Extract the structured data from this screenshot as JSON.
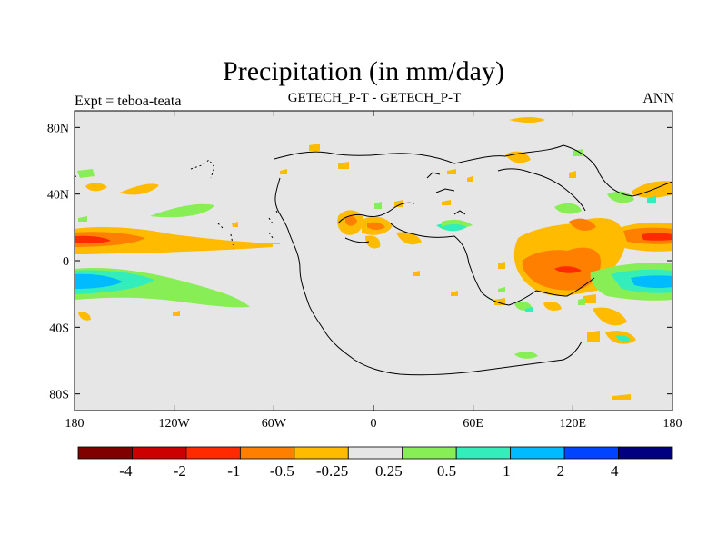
{
  "title": "Precipitation (in mm/day)",
  "left_label": "Expt = teboa-teata",
  "center_label": "GETECH_P-T - GETECH_P-T",
  "right_label": "ANN",
  "lat_ticks": [
    {
      "value": 80,
      "label": "80N"
    },
    {
      "value": 40,
      "label": "40N"
    },
    {
      "value": 0,
      "label": "0"
    },
    {
      "value": -40,
      "label": "40S"
    },
    {
      "value": -80,
      "label": "80S"
    }
  ],
  "lon_ticks": [
    {
      "value": -180,
      "label": "180"
    },
    {
      "value": -120,
      "label": "120W"
    },
    {
      "value": -60,
      "label": "60W"
    },
    {
      "value": 0,
      "label": "0"
    },
    {
      "value": 60,
      "label": "60E"
    },
    {
      "value": 120,
      "label": "120E"
    },
    {
      "value": 180,
      "label": "180"
    }
  ],
  "colorbar": {
    "colors": [
      "#800000",
      "#cc0000",
      "#ff2a00",
      "#ff8000",
      "#ffbb00",
      "#e6e6e6",
      "#88ee55",
      "#33eebb",
      "#00bbff",
      "#0044ff",
      "#000080"
    ],
    "labels": [
      "-4",
      "-2",
      "-1",
      "-0.5",
      "-0.25",
      "0.25",
      "0.5",
      "1",
      "2",
      "4"
    ]
  },
  "colors": {
    "background": "#e6e6e6",
    "pos_0_25": "#88ee55",
    "pos_0_5": "#33eebb",
    "pos_1": "#00bbff",
    "neg_0_25": "#ffbb00",
    "neg_0_5": "#ff8000",
    "neg_1": "#ff2a00",
    "neg_2": "#cc0000"
  }
}
